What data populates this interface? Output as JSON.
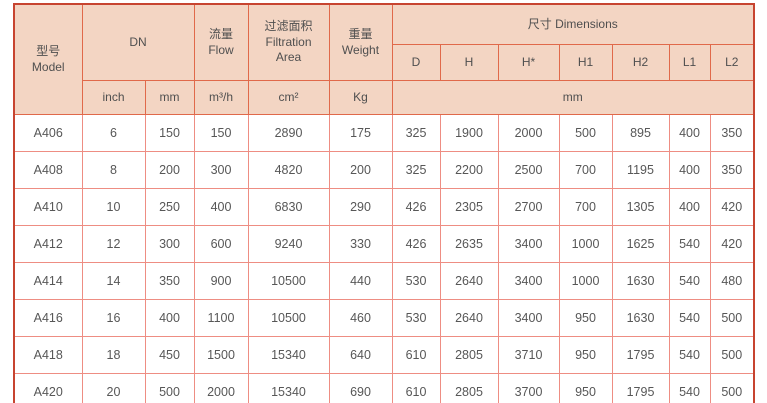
{
  "colors": {
    "header_bg": "#f3d5c3",
    "header_border": "#e0694a",
    "outer_border": "#c74430",
    "body_border": "#ee8d83",
    "header_text": "#4f4f4f",
    "body_text": "#575757"
  },
  "table": {
    "header": {
      "model_zh": "型号",
      "model_en": "Model",
      "dn": "DN",
      "flow_zh": "流量",
      "flow_en": "Flow",
      "filtration_zh": "过滤面积",
      "filtration_en_line1": "Filtration",
      "filtration_en_line2": "Area",
      "weight_zh": "重量",
      "weight_en": "Weight",
      "dimensions": "尺寸 Dimensions",
      "dim_columns": [
        "D",
        "H",
        "H*",
        "H1",
        "H2",
        "L1",
        "L2"
      ],
      "unit_inch": "inch",
      "unit_mm": "mm",
      "unit_flow": "m³/h",
      "unit_area": "cm²",
      "unit_weight": "Kg",
      "unit_dimensions": "mm"
    },
    "row_keys": [
      "model",
      "dn_inch",
      "dn_mm",
      "flow",
      "area",
      "weight",
      "d",
      "h",
      "h_star",
      "h1",
      "h2",
      "l1",
      "l2"
    ],
    "rows": [
      {
        "model": "A406",
        "dn_inch": "6",
        "dn_mm": "150",
        "flow": "150",
        "area": "2890",
        "weight": "175",
        "d": "325",
        "h": "1900",
        "h_star": "2000",
        "h1": "500",
        "h2": "895",
        "l1": "400",
        "l2": "350"
      },
      {
        "model": "A408",
        "dn_inch": "8",
        "dn_mm": "200",
        "flow": "300",
        "area": "4820",
        "weight": "200",
        "d": "325",
        "h": "2200",
        "h_star": "2500",
        "h1": "700",
        "h2": "1195",
        "l1": "400",
        "l2": "350"
      },
      {
        "model": "A410",
        "dn_inch": "10",
        "dn_mm": "250",
        "flow": "400",
        "area": "6830",
        "weight": "290",
        "d": "426",
        "h": "2305",
        "h_star": "2700",
        "h1": "700",
        "h2": "1305",
        "l1": "400",
        "l2": "420"
      },
      {
        "model": "A412",
        "dn_inch": "12",
        "dn_mm": "300",
        "flow": "600",
        "area": "9240",
        "weight": "330",
        "d": "426",
        "h": "2635",
        "h_star": "3400",
        "h1": "1000",
        "h2": "1625",
        "l1": "540",
        "l2": "420"
      },
      {
        "model": "A414",
        "dn_inch": "14",
        "dn_mm": "350",
        "flow": "900",
        "area": "10500",
        "weight": "440",
        "d": "530",
        "h": "2640",
        "h_star": "3400",
        "h1": "1000",
        "h2": "1630",
        "l1": "540",
        "l2": "480"
      },
      {
        "model": "A416",
        "dn_inch": "16",
        "dn_mm": "400",
        "flow": "1100",
        "area": "10500",
        "weight": "460",
        "d": "530",
        "h": "2640",
        "h_star": "3400",
        "h1": "950",
        "h2": "1630",
        "l1": "540",
        "l2": "500"
      },
      {
        "model": "A418",
        "dn_inch": "18",
        "dn_mm": "450",
        "flow": "1500",
        "area": "15340",
        "weight": "640",
        "d": "610",
        "h": "2805",
        "h_star": "3710",
        "h1": "950",
        "h2": "1795",
        "l1": "540",
        "l2": "500"
      },
      {
        "model": "A420",
        "dn_inch": "20",
        "dn_mm": "500",
        "flow": "2000",
        "area": "15340",
        "weight": "690",
        "d": "610",
        "h": "2805",
        "h_star": "3700",
        "h1": "950",
        "h2": "1795",
        "l1": "540",
        "l2": "500"
      }
    ]
  }
}
